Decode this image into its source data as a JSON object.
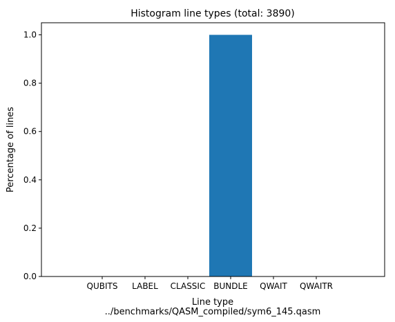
{
  "chart_data": {
    "type": "bar",
    "title": "Histogram line types (total: 3890)",
    "xlabel": "Line type",
    "subcaption": "../benchmarks/QASM_compiled/sym6_145.qasm",
    "ylabel": "Percentage of lines",
    "categories": [
      "QUBITS",
      "LABEL",
      "CLASSIC",
      "BUNDLE",
      "QWAIT",
      "QWAITR"
    ],
    "values": [
      0.0,
      0.0,
      0.0,
      1.0,
      0.0,
      0.0
    ],
    "ylim": [
      0,
      1.05
    ],
    "yticks": [
      "0.0",
      "0.2",
      "0.4",
      "0.6",
      "0.8",
      "1.0"
    ],
    "bar_color": "#1f77b4",
    "grid": false,
    "legend": "none"
  }
}
